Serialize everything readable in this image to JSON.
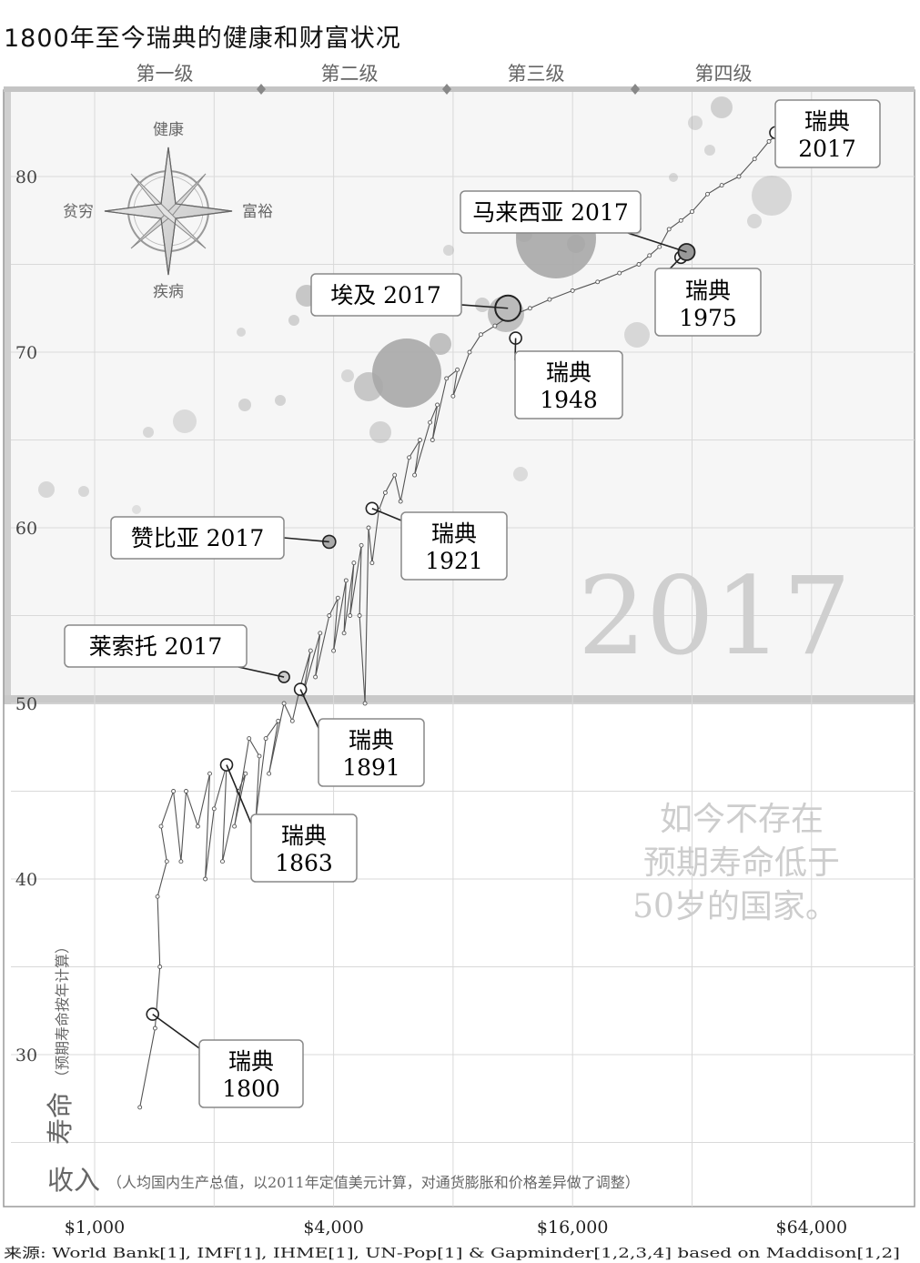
{
  "title": "1800年至今瑞典的健康和财富状况",
  "source": "来源: World Bank[1], IMF[1], IHME[1], UN-Pop[1] & Gapminder[1,2,3,4] based on Maddison[1,2]",
  "colors": {
    "bubble": "#b5b5b5",
    "bubble_dark": "#9a9a9a",
    "path": "#444444",
    "grid": "#d9d9d9",
    "upper_bg": "#f6f6f6",
    "band": "#c9c9c9"
  },
  "levels": [
    "第一级",
    "第二级",
    "第三级",
    "第四级"
  ],
  "compass": {
    "up": "健康",
    "down": "疾病",
    "left": "贫穷",
    "right": "富裕"
  },
  "year_watermark": "2017",
  "note_lines": [
    "如今不存在",
    "预期寿命低于",
    "50岁的国家。"
  ],
  "chart_data": {
    "type": "scatter",
    "x_scale": "log",
    "xlim": [
      800,
      110000
    ],
    "ylim": [
      22,
      85
    ],
    "x_ticks": [
      1000,
      4000,
      16000,
      64000
    ],
    "x_tick_labels": [
      "$1,000",
      "$4,000",
      "$16,000",
      "$64,000"
    ],
    "y_ticks": [
      30,
      40,
      50,
      60,
      70,
      80
    ],
    "y_tick_labels": [
      "30",
      "40",
      "50",
      "60",
      "70",
      "80"
    ],
    "xlabel": "收入",
    "xlabel_sub": "（人均国内生产总值，以2011年定值美元计算，对通货膨胀和价格差异做了调整）",
    "ylabel": "寿命",
    "ylabel_sub": "（预期寿命按年计算）",
    "grid": true,
    "sweden_path": [
      [
        1300,
        27
      ],
      [
        1420,
        31.5
      ],
      [
        1460,
        35
      ],
      [
        1440,
        39
      ],
      [
        1520,
        41
      ],
      [
        1470,
        43
      ],
      [
        1580,
        45
      ],
      [
        1650,
        41
      ],
      [
        1700,
        45
      ],
      [
        1820,
        43
      ],
      [
        1950,
        46
      ],
      [
        1900,
        40
      ],
      [
        2000,
        44
      ],
      [
        2150,
        46.5
      ],
      [
        2100,
        41
      ],
      [
        2300,
        45
      ],
      [
        2400,
        46
      ],
      [
        2250,
        43
      ],
      [
        2450,
        48
      ],
      [
        2600,
        47
      ],
      [
        2550,
        43.5
      ],
      [
        2700,
        48
      ],
      [
        2900,
        49
      ],
      [
        2750,
        46
      ],
      [
        3000,
        50
      ],
      [
        3150,
        49
      ],
      [
        3300,
        51
      ],
      [
        3500,
        53
      ],
      [
        3350,
        50.5
      ],
      [
        3700,
        54
      ],
      [
        3600,
        51.5
      ],
      [
        3900,
        55
      ],
      [
        4100,
        56
      ],
      [
        4000,
        53
      ],
      [
        4300,
        57
      ],
      [
        4250,
        54
      ],
      [
        4500,
        58
      ],
      [
        4400,
        55
      ],
      [
        4700,
        59
      ],
      [
        4650,
        55
      ],
      [
        4800,
        50
      ],
      [
        4900,
        60
      ],
      [
        5000,
        58
      ],
      [
        5200,
        61
      ],
      [
        5400,
        62
      ],
      [
        5700,
        63
      ],
      [
        5900,
        61.5
      ],
      [
        6200,
        64
      ],
      [
        6600,
        65
      ],
      [
        6400,
        63
      ],
      [
        7000,
        66
      ],
      [
        7300,
        67
      ],
      [
        7100,
        65
      ],
      [
        7700,
        68.5
      ],
      [
        8200,
        69
      ],
      [
        8000,
        67.5
      ],
      [
        8800,
        70
      ],
      [
        9400,
        71
      ],
      [
        10200,
        71.5
      ],
      [
        11000,
        72
      ],
      [
        12500,
        72.5
      ],
      [
        14000,
        73
      ],
      [
        16000,
        73.5
      ],
      [
        18500,
        74
      ],
      [
        21000,
        74.5
      ],
      [
        23500,
        75
      ],
      [
        25000,
        75.5
      ],
      [
        26500,
        76
      ],
      [
        28000,
        77
      ],
      [
        30000,
        77.5
      ],
      [
        32000,
        78
      ],
      [
        35000,
        79
      ],
      [
        38000,
        79.5
      ],
      [
        42000,
        80
      ],
      [
        46000,
        81
      ],
      [
        50000,
        82
      ],
      [
        53000,
        82.5
      ]
    ],
    "sweden_marked": [
      {
        "year": "1800",
        "x": 1400,
        "y": 32.3
      },
      {
        "year": "1863",
        "x": 2150,
        "y": 46.5
      },
      {
        "year": "1891",
        "x": 3300,
        "y": 50.8
      },
      {
        "year": "1921",
        "x": 5000,
        "y": 61.1
      },
      {
        "year": "1948",
        "x": 11500,
        "y": 70.8
      },
      {
        "year": "1975",
        "x": 30000,
        "y": 75.4
      },
      {
        "year": "2017",
        "x": 52000,
        "y": 82.5
      }
    ],
    "countries_2017": [
      {
        "name": "赞比亚",
        "x": 3900,
        "y": 59.2
      },
      {
        "name": "莱索托",
        "x": 3000,
        "y": 51.5
      },
      {
        "name": "埃及",
        "x": 11000,
        "y": 72.5
      },
      {
        "name": "马来西亚",
        "x": 31000,
        "y": 75.7
      }
    ],
    "callouts": [
      {
        "line1": "瑞典",
        "line2": "2017"
      },
      {
        "line1": "马来西亚 2017",
        "line2": ""
      },
      {
        "line1": "瑞典",
        "line2": "1975"
      },
      {
        "line1": "埃及 2017",
        "line2": ""
      },
      {
        "line1": "瑞典",
        "line2": "1948"
      },
      {
        "line1": "瑞典",
        "line2": "1921"
      },
      {
        "line1": "赞比亚 2017",
        "line2": ""
      },
      {
        "line1": "莱索托 2017",
        "line2": ""
      },
      {
        "line1": "瑞典",
        "line2": "1891"
      },
      {
        "line1": "瑞典",
        "line2": "1863"
      },
      {
        "line1": "瑞典",
        "line2": "1800"
      }
    ]
  }
}
